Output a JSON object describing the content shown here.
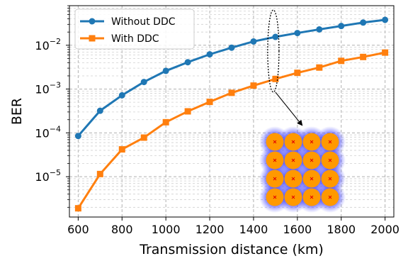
{
  "chart_data": {
    "type": "line",
    "title": "",
    "xlabel": "Transmission distance (km)",
    "ylabel": "BER",
    "xlim": [
      560,
      2040
    ],
    "ylim": [
      1.2e-06,
      0.08
    ],
    "yscale": "log",
    "xticks": [
      600,
      800,
      1000,
      1200,
      1400,
      1600,
      1800,
      2000
    ],
    "yticks": [
      {
        "value": 1e-05,
        "base": "10",
        "exp": "−5"
      },
      {
        "value": 0.0001,
        "base": "10",
        "exp": "−4"
      },
      {
        "value": 0.001,
        "base": "10",
        "exp": "−3"
      },
      {
        "value": 0.01,
        "base": "10",
        "exp": "−2"
      }
    ],
    "grid": true,
    "legend_position": "top-left",
    "series": [
      {
        "name": "Without DDC",
        "color": "#1f77b4",
        "marker": "circle",
        "x": [
          600,
          700,
          800,
          900,
          1000,
          1100,
          1200,
          1300,
          1400,
          1500,
          1600,
          1700,
          1800,
          1900,
          2000
        ],
        "y": [
          8.5e-05,
          0.00032,
          0.00072,
          0.00145,
          0.0026,
          0.0041,
          0.0062,
          0.0088,
          0.0122,
          0.0155,
          0.019,
          0.023,
          0.0275,
          0.033,
          0.038
        ]
      },
      {
        "name": "With DDC",
        "color": "#ff7f0e",
        "marker": "square",
        "x": [
          600,
          700,
          800,
          900,
          1000,
          1100,
          1200,
          1300,
          1400,
          1500,
          1600,
          1700,
          1800,
          1900,
          2000
        ],
        "y": [
          1.9e-06,
          1.15e-05,
          4.2e-05,
          7.8e-05,
          0.000175,
          0.00031,
          0.00051,
          0.00082,
          0.0012,
          0.0017,
          0.00235,
          0.0031,
          0.0044,
          0.0054,
          0.0068
        ]
      }
    ],
    "annotation": {
      "ellipse_x": 1500,
      "arrow_target": "inset",
      "inset": "constellation-diagram",
      "inset_colors": {
        "cloud": "#1a1aff",
        "blob": "#ff9900",
        "center": "#e00000"
      },
      "inset_grid": [
        4,
        4
      ]
    }
  }
}
